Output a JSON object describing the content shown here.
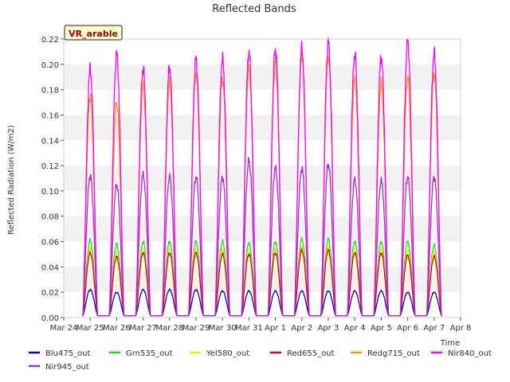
{
  "chart_data": {
    "type": "line",
    "title": "Reflected Bands",
    "xlabel": "Time",
    "ylabel": "Reflected Radiation (W/m2)",
    "ylim": [
      0,
      0.22
    ],
    "yticks": [
      "0.00",
      "0.02",
      "0.04",
      "0.06",
      "0.08",
      "0.10",
      "0.12",
      "0.14",
      "0.16",
      "0.18",
      "0.20",
      "0.22"
    ],
    "xticks": [
      "Mar 24",
      "Mar 25",
      "Mar 26",
      "Mar 27",
      "Mar 28",
      "Mar 29",
      "Mar 30",
      "Mar 31",
      "Apr 1",
      "Apr 2",
      "Apr 3",
      "Apr 4",
      "Apr 5",
      "Apr 6",
      "Apr 7",
      "Apr 8"
    ],
    "x_range_days": [
      0,
      15
    ],
    "grid": "horizontal bands",
    "annotation": "VR_arable",
    "legend_position": "bottom",
    "day_centers": [
      1.0,
      2.0,
      3.0,
      4.0,
      5.0,
      6.0,
      7.0,
      8.0,
      9.0,
      10.0,
      11.0,
      12.0,
      13.0,
      14.0
    ],
    "series": [
      {
        "name": "Blu475_out",
        "color": "#0000cc",
        "peaks": [
          0.022,
          0.02,
          0.022,
          0.022,
          0.022,
          0.021,
          0.021,
          0.021,
          0.021,
          0.021,
          0.021,
          0.021,
          0.02,
          0.02
        ]
      },
      {
        "name": "Grn535_out",
        "color": "#22dd22",
        "peaks": [
          0.061,
          0.058,
          0.06,
          0.06,
          0.06,
          0.06,
          0.059,
          0.06,
          0.062,
          0.062,
          0.06,
          0.06,
          0.06,
          0.057
        ]
      },
      {
        "name": "Yel580_out",
        "color": "#eeee00",
        "peaks": [
          0.055,
          0.052,
          0.054,
          0.054,
          0.054,
          0.054,
          0.053,
          0.054,
          0.056,
          0.056,
          0.054,
          0.054,
          0.053,
          0.052
        ]
      },
      {
        "name": "Red655_out",
        "color": "#dd0000",
        "peaks": [
          0.051,
          0.048,
          0.051,
          0.051,
          0.051,
          0.05,
          0.05,
          0.051,
          0.053,
          0.053,
          0.051,
          0.051,
          0.049,
          0.048
        ]
      },
      {
        "name": "Redg715_out",
        "color": "#ff9900",
        "peaks": [
          0.175,
          0.17,
          0.182,
          0.185,
          0.193,
          0.189,
          0.197,
          0.202,
          0.208,
          0.206,
          0.188,
          0.185,
          0.19,
          0.193
        ]
      },
      {
        "name": "Nir840_out",
        "color": "#ff00ff",
        "peaks": [
          0.196,
          0.208,
          0.197,
          0.198,
          0.204,
          0.204,
          0.21,
          0.212,
          0.213,
          0.217,
          0.208,
          0.206,
          0.218,
          0.208
        ]
      },
      {
        "name": "Nir945_out",
        "color": "#9933cc",
        "peaks": [
          0.112,
          0.105,
          0.113,
          0.111,
          0.111,
          0.111,
          0.124,
          0.118,
          0.118,
          0.121,
          0.109,
          0.108,
          0.111,
          0.111
        ]
      }
    ]
  }
}
